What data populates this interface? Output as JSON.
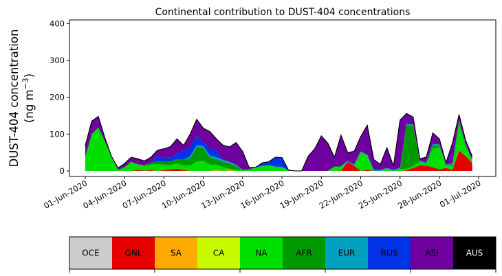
{
  "chart_data": {
    "type": "area",
    "stacked": true,
    "title": "Continental contribution to DUST-404 concentrations",
    "ylabel_line1": "DUST-404 concentration",
    "ylabel_line2_prefix": "(ng m",
    "ylabel_line2_sup": "−3",
    "ylabel_line2_suffix": ")",
    "ylim": [
      -15,
      410
    ],
    "yticks": [
      0,
      100,
      200,
      300,
      400
    ],
    "xrange_days": [
      -1.2,
      31.3
    ],
    "xticks": [
      {
        "day": 0,
        "label": "01-Jun-2020"
      },
      {
        "day": 3,
        "label": "04-Jun-2020"
      },
      {
        "day": 6,
        "label": "07-Jun-2020"
      },
      {
        "day": 9,
        "label": "10-Jun-2020"
      },
      {
        "day": 12,
        "label": "13-Jun-2020"
      },
      {
        "day": 15,
        "label": "16-Jun-2020"
      },
      {
        "day": 18,
        "label": "19-Jun-2020"
      },
      {
        "day": 21,
        "label": "22-Jun-2020"
      },
      {
        "day": 24,
        "label": "25-Jun-2020"
      },
      {
        "day": 27,
        "label": "28-Jun-2020"
      },
      {
        "day": 30,
        "label": "01-Jul-2020"
      }
    ],
    "x_days": [
      0,
      0.5,
      1,
      1.5,
      2,
      2.5,
      3,
      3.5,
      4,
      4.5,
      5,
      5.5,
      6,
      6.5,
      7,
      7.5,
      8,
      8.5,
      9,
      9.5,
      10,
      10.5,
      11,
      11.5,
      12,
      12.5,
      13,
      13.5,
      14,
      14.5,
      15,
      15.5,
      16,
      16.5,
      17,
      17.5,
      18,
      18.5,
      19,
      19.5,
      20,
      20.5,
      21,
      21.5,
      22,
      22.5,
      23,
      23.5,
      24,
      24.5,
      25,
      25.5,
      26,
      26.5,
      27,
      27.5,
      28,
      28.5,
      29,
      29.5
    ],
    "series": [
      {
        "name": "OCE",
        "color": "#cccccc",
        "values": [
          0,
          0,
          0,
          0,
          0,
          0,
          0,
          0,
          0,
          0,
          0,
          0,
          0,
          0,
          0,
          0,
          0,
          0,
          0,
          0,
          0,
          0,
          0,
          0,
          0,
          0,
          0,
          0,
          0,
          0,
          0,
          0,
          0,
          0,
          0,
          0,
          0,
          0,
          0,
          0,
          0,
          0,
          0,
          0,
          0,
          0,
          0,
          0,
          0,
          0,
          0,
          0,
          0,
          0,
          0,
          0,
          0,
          0,
          0,
          0
        ]
      },
      {
        "name": "GNL",
        "color": "#e60000",
        "values": [
          0,
          0,
          0,
          0,
          0,
          0,
          0,
          0,
          3,
          1,
          2,
          0,
          2,
          4,
          6,
          3,
          0,
          0,
          0,
          0,
          0,
          0,
          0,
          0,
          0,
          0,
          0,
          0,
          0,
          0,
          0,
          0,
          0,
          0,
          0,
          0,
          0,
          0,
          0,
          0,
          25,
          14,
          0,
          3,
          0,
          0,
          0,
          0,
          0,
          2,
          8,
          15,
          14,
          10,
          4,
          8,
          3,
          55,
          40,
          22
        ]
      },
      {
        "name": "SA",
        "color": "#ffaa00",
        "values": [
          0,
          0,
          0,
          0,
          0,
          0,
          0,
          0,
          0,
          0,
          0,
          0,
          0,
          0,
          0,
          0,
          0,
          0,
          0,
          0,
          2,
          0,
          2,
          0,
          0,
          0,
          0,
          0,
          0,
          0,
          0,
          0,
          0,
          0,
          0,
          0,
          0,
          0,
          0,
          0,
          0,
          0,
          0,
          0,
          0,
          0,
          0,
          0,
          0,
          0,
          0,
          0,
          0,
          0,
          0,
          0,
          0,
          0,
          0,
          0
        ]
      },
      {
        "name": "CA",
        "color": "#c8fa00",
        "values": [
          0,
          0,
          0,
          0,
          0,
          0,
          0,
          0,
          0,
          0,
          0,
          0,
          0,
          0,
          0,
          0,
          0,
          0,
          0,
          0,
          0,
          0,
          0,
          0,
          0,
          0,
          0,
          0,
          0,
          0,
          0,
          0,
          0,
          0,
          0,
          0,
          0,
          0,
          0,
          0,
          0,
          0,
          0,
          0,
          0,
          0,
          0,
          0,
          0,
          0,
          0,
          0,
          0,
          0,
          0,
          0,
          0,
          0,
          0,
          0
        ]
      },
      {
        "name": "NA",
        "color": "#00e000",
        "values": [
          38,
          100,
          118,
          80,
          40,
          3,
          10,
          25,
          15,
          12,
          15,
          18,
          15,
          12,
          14,
          12,
          15,
          25,
          28,
          17,
          15,
          10,
          4,
          3,
          3,
          4,
          10,
          12,
          15,
          10,
          8,
          2,
          0,
          0,
          0,
          0,
          0,
          0,
          12,
          12,
          0,
          0,
          50,
          38,
          0,
          0,
          5,
          0,
          5,
          3,
          5,
          10,
          5,
          50,
          60,
          6,
          10,
          70,
          25,
          5
        ]
      },
      {
        "name": "AFR",
        "color": "#009a00",
        "values": [
          0,
          0,
          0,
          0,
          0,
          0,
          0,
          0,
          0,
          3,
          5,
          8,
          8,
          10,
          12,
          15,
          20,
          40,
          35,
          20,
          15,
          15,
          15,
          10,
          0,
          0,
          0,
          0,
          0,
          0,
          0,
          0,
          0,
          0,
          0,
          0,
          0,
          0,
          0,
          0,
          0,
          0,
          0,
          0,
          0,
          0,
          0,
          0,
          0,
          120,
          110,
          0,
          0,
          10,
          5,
          0,
          5,
          10,
          5,
          0
        ]
      },
      {
        "name": "EUR",
        "color": "#00a0be",
        "values": [
          0,
          0,
          0,
          0,
          0,
          0,
          0,
          0,
          0,
          0,
          0,
          0,
          0,
          0,
          0,
          0,
          5,
          5,
          5,
          5,
          5,
          5,
          4,
          4,
          0,
          0,
          0,
          2,
          0,
          2,
          3,
          0,
          0,
          0,
          0,
          0,
          0,
          0,
          0,
          0,
          3,
          3,
          3,
          3,
          3,
          3,
          3,
          3,
          3,
          3,
          3,
          3,
          3,
          3,
          3,
          3,
          3,
          3,
          3,
          3
        ]
      },
      {
        "name": "RUS",
        "color": "#0032e6",
        "values": [
          0,
          0,
          0,
          0,
          0,
          0,
          0,
          0,
          0,
          0,
          0,
          15,
          10,
          10,
          15,
          25,
          25,
          25,
          10,
          20,
          20,
          0,
          0,
          0,
          0,
          0,
          0,
          8,
          10,
          25,
          25,
          0,
          0,
          0,
          0,
          0,
          0,
          0,
          0,
          0,
          0,
          0,
          0,
          0,
          0,
          0,
          0,
          0,
          0,
          0,
          0,
          0,
          0,
          0,
          0,
          0,
          0,
          0,
          0,
          0
        ]
      },
      {
        "name": "ASI",
        "color": "#6e00a0",
        "values": [
          30,
          35,
          30,
          10,
          0,
          5,
          10,
          12,
          15,
          11,
          15,
          15,
          25,
          30,
          40,
          14,
          35,
          45,
          38,
          45,
          30,
          40,
          40,
          60,
          50,
          5,
          0,
          0,
          0,
          0,
          0,
          0,
          0,
          0,
          40,
          60,
          95,
          75,
          25,
          85,
          22,
          36,
          40,
          80,
          28,
          15,
          55,
          10,
          130,
          28,
          20,
          5,
          15,
          30,
          15,
          5,
          55,
          15,
          10,
          10
        ]
      },
      {
        "name": "AUS",
        "color": "#000000",
        "values": [
          0,
          0,
          0,
          0,
          0,
          0,
          0,
          0,
          0,
          0,
          0,
          0,
          0,
          0,
          0,
          0,
          0,
          0,
          0,
          0,
          0,
          0,
          0,
          0,
          0,
          0,
          0,
          0,
          0,
          0,
          0,
          0,
          0,
          0,
          0,
          0,
          0,
          0,
          0,
          0,
          0,
          0,
          0,
          0,
          0,
          0,
          0,
          0,
          0,
          0,
          0,
          0,
          0,
          0,
          0,
          0,
          0,
          0,
          0,
          0
        ]
      }
    ],
    "legend": [
      {
        "name": "OCE",
        "color": "#cccccc",
        "text_color": "#000000"
      },
      {
        "name": "GNL",
        "color": "#e60000",
        "text_color": "#000000"
      },
      {
        "name": "SA",
        "color": "#ffaa00",
        "text_color": "#000000"
      },
      {
        "name": "CA",
        "color": "#c8fa00",
        "text_color": "#000000"
      },
      {
        "name": "NA",
        "color": "#00e000",
        "text_color": "#000000"
      },
      {
        "name": "AFR",
        "color": "#009a00",
        "text_color": "#000000"
      },
      {
        "name": "EUR",
        "color": "#00a0be",
        "text_color": "#000000"
      },
      {
        "name": "RUS",
        "color": "#0032e6",
        "text_color": "#000000"
      },
      {
        "name": "ASI",
        "color": "#6e00a0",
        "text_color": "#000000"
      },
      {
        "name": "AUS",
        "color": "#000000",
        "text_color": "#ffffff"
      }
    ],
    "legend_placement": "bottom",
    "grid": false
  }
}
